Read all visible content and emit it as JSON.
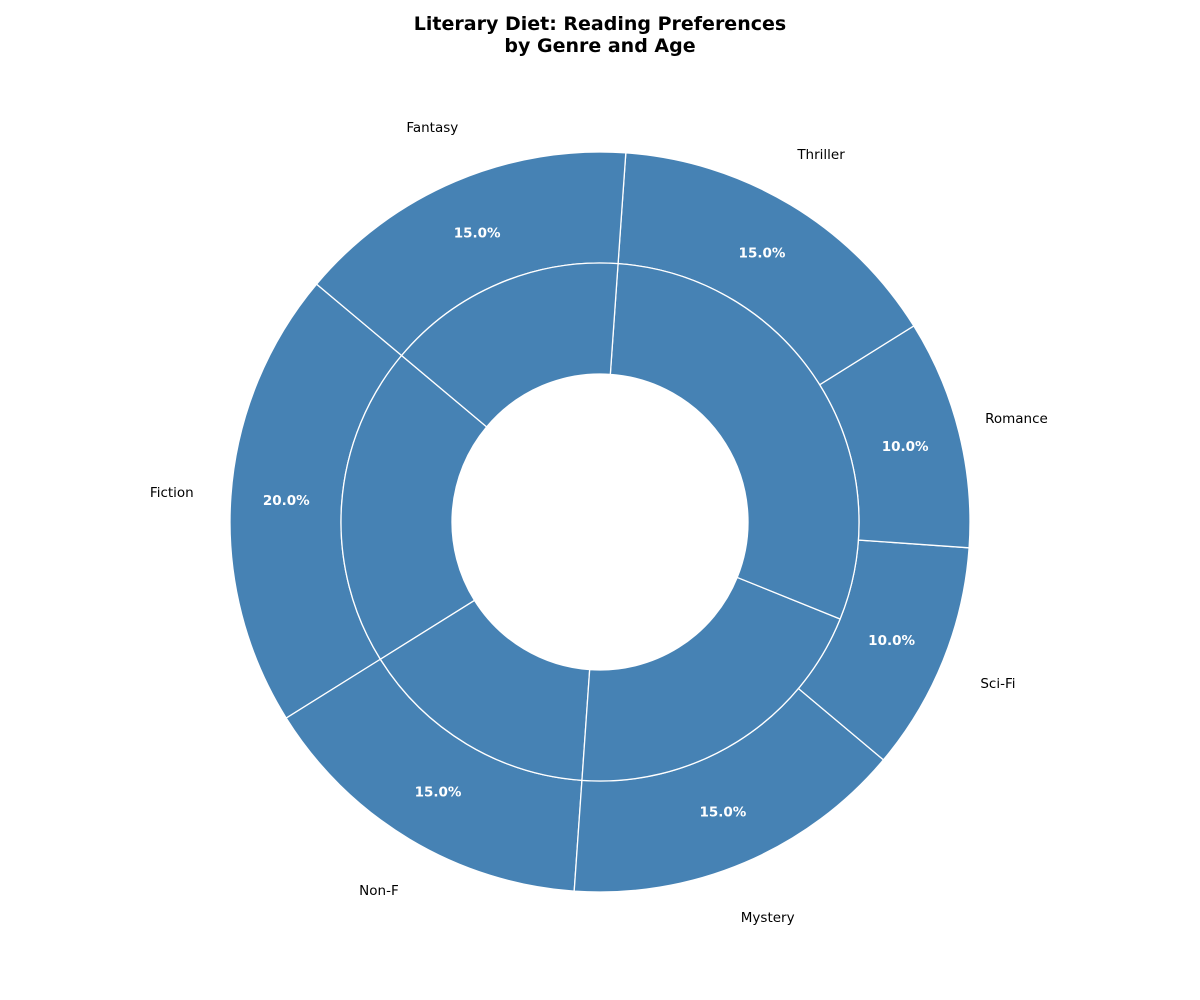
{
  "chart_data": {
    "type": "pie",
    "title": [
      "Literary Diet: Reading Preferences",
      "by Genre and Age"
    ],
    "style": "nested-donut",
    "color": "#4682B4",
    "outer": {
      "categories": [
        "Fiction",
        "Non-F",
        "Mystery",
        "Sci-Fi",
        "Romance",
        "Thriller",
        "Fantasy"
      ],
      "values": [
        20.0,
        15.0,
        15.0,
        10.0,
        10.0,
        15.0,
        15.0
      ],
      "labels": [
        "20.0%",
        "15.0%",
        "15.0%",
        "10.0%",
        "10.0%",
        "15.0%",
        "15.0%"
      ]
    },
    "inner": {
      "values": [
        20.0,
        15.0,
        20.0,
        30.0,
        15.0
      ]
    }
  }
}
